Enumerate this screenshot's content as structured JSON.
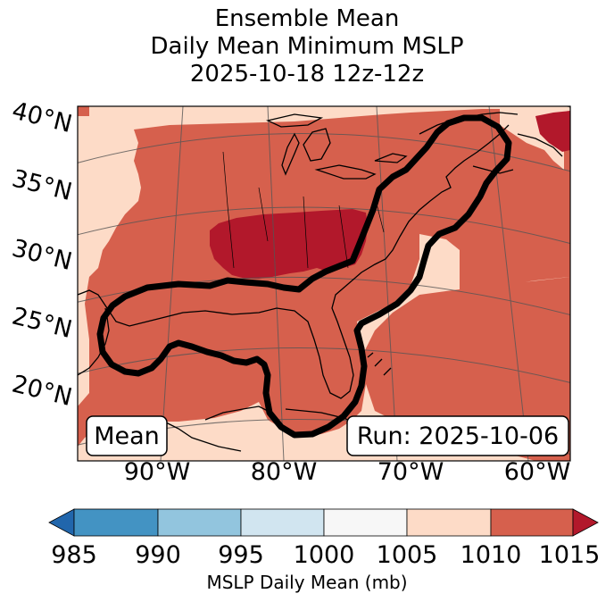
{
  "title": {
    "line1": "Ensemble Mean",
    "line2": "Daily Mean Minimum MSLP",
    "line3": "2025-10-18 12z-12z"
  },
  "map": {
    "lat_labels": [
      "40°N",
      "35°N",
      "30°N",
      "25°N",
      "20°N"
    ],
    "lon_labels": [
      "90°W",
      "80°W",
      "70°W",
      "60°W"
    ],
    "mean_box": "Mean",
    "run_box": "Run: 2025-10-06"
  },
  "colorbar": {
    "ticks": [
      "985",
      "990",
      "995",
      "1000",
      "1005",
      "1010",
      "1015"
    ],
    "label": "MSLP Daily Mean (mb)",
    "colors": {
      "under": "#2166ac",
      "b985_990": "#4393c3",
      "b990_995": "#92c5de",
      "b995_1000": "#d1e5f0",
      "b1000_1005": "#f7f7f7",
      "b1005_1010": "#fddbc7",
      "b1010_1015": "#d6604d",
      "over": "#b2182b"
    }
  }
}
